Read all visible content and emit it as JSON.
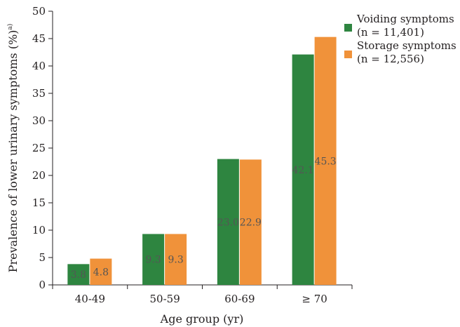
{
  "chart_data": {
    "type": "bar",
    "categories": [
      "40-49",
      "50-59",
      "60-69",
      "≥ 70"
    ],
    "series": [
      {
        "name": "Voiding symptoms",
        "name_line2": "(n = 11,401)",
        "values": [
          3.8,
          9.3,
          23.0,
          42.1
        ],
        "labels": [
          "3.8",
          "9.3",
          "23.0",
          "42.1"
        ],
        "color": "#2e8540"
      },
      {
        "name": "Storage symptoms",
        "name_line2": "(n = 12,556)",
        "values": [
          4.8,
          9.3,
          22.9,
          45.3
        ],
        "labels": [
          "4.8",
          "9.3",
          "22.9",
          "45.3"
        ],
        "color": "#f0923a"
      }
    ],
    "xlabel": "Age group (yr)",
    "ylabel": "Prevalence of lower urinary symptoms (%)",
    "ylabel_superscript": "a)",
    "ylim": [
      0,
      50
    ],
    "yticks": [
      "0",
      "5",
      "10",
      "15",
      "20",
      "25",
      "30",
      "35",
      "40",
      "45",
      "50"
    ],
    "grid": false,
    "legend_position": "top-right"
  }
}
